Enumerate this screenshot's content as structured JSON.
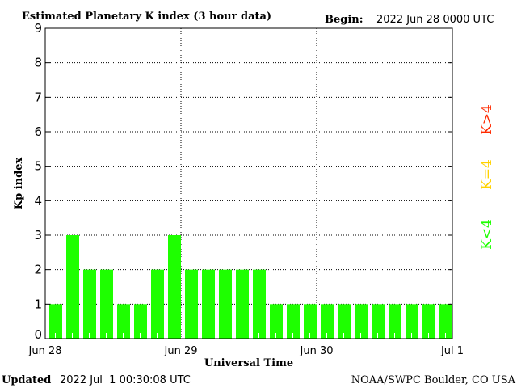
{
  "chart_data": {
    "type": "bar",
    "title": "Estimated Planetary K index (3 hour data)",
    "begin_label": "Begin:",
    "begin_value": "2022 Jun 28 0000 UTC",
    "xlabel": "Universal Time",
    "ylabel": "Kp index",
    "ylim": [
      0,
      9
    ],
    "yticks": [
      "0",
      "1",
      "2",
      "3",
      "4",
      "5",
      "6",
      "7",
      "8",
      "9"
    ],
    "xticks": [
      "Jun 28",
      "Jun 29",
      "Jun 30",
      "Jul 1"
    ],
    "values": [
      1,
      3,
      2,
      2,
      1,
      1,
      2,
      3,
      2,
      2,
      2,
      2,
      2,
      1,
      1,
      1,
      1,
      1,
      1,
      1,
      1,
      1,
      1,
      1
    ],
    "bar_color": "#1eff00",
    "grid": true,
    "legend": [
      {
        "label": "K<4",
        "color": "#1eff00"
      },
      {
        "label": "K=4",
        "color": "#ffd200"
      },
      {
        "label": "K>4",
        "color": "#ff2a00"
      }
    ]
  },
  "footer": {
    "updated_label": "Updated",
    "updated_value": "2022 Jul  1 00:30:08 UTC",
    "source": "NOAA/SWPC Boulder, CO USA"
  }
}
